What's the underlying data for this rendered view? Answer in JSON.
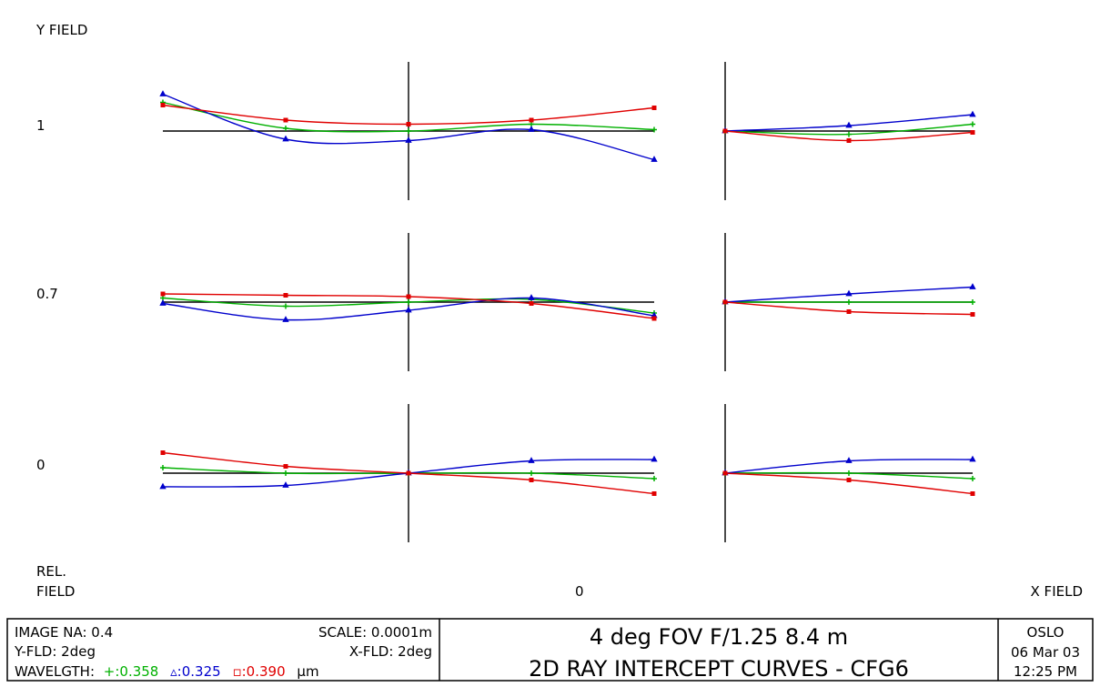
{
  "chart_data": {
    "type": "line",
    "y_field_label": "Y FIELD",
    "x_field_label": "X FIELD",
    "rel_field_label": [
      "REL.",
      "FIELD"
    ],
    "x_field_value": "0",
    "rows": [
      {
        "field_label": "1",
        "tangential": {
          "x": [
            -1,
            -0.5,
            0,
            0.5,
            1
          ],
          "series": [
            {
              "key": "green",
              "values": [
                1.05,
                0.1,
                0.0,
                0.25,
                0.05
              ]
            },
            {
              "key": "blue",
              "values": [
                1.35,
                -0.3,
                -0.35,
                0.05,
                -1.05
              ]
            },
            {
              "key": "red",
              "values": [
                0.95,
                0.4,
                0.25,
                0.4,
                0.85
              ]
            }
          ]
        },
        "sagittal": {
          "x": [
            0,
            0.5,
            1
          ],
          "series": [
            {
              "key": "green",
              "values": [
                0.0,
                -0.12,
                0.25
              ]
            },
            {
              "key": "blue",
              "values": [
                0.0,
                0.2,
                0.6
              ]
            },
            {
              "key": "red",
              "values": [
                0.0,
                -0.35,
                -0.05
              ]
            }
          ]
        }
      },
      {
        "field_label": "0.7",
        "tangential": {
          "x": [
            -1,
            -0.5,
            0,
            0.5,
            1
          ],
          "series": [
            {
              "key": "green",
              "values": [
                0.15,
                -0.15,
                0.0,
                0.1,
                -0.4
              ]
            },
            {
              "key": "blue",
              "values": [
                -0.05,
                -0.65,
                -0.3,
                0.15,
                -0.5
              ]
            },
            {
              "key": "red",
              "values": [
                0.3,
                0.25,
                0.2,
                -0.05,
                -0.6
              ]
            }
          ]
        },
        "sagittal": {
          "x": [
            0,
            0.5,
            1
          ],
          "series": [
            {
              "key": "green",
              "values": [
                0.0,
                0.0,
                0.0
              ]
            },
            {
              "key": "blue",
              "values": [
                0.0,
                0.3,
                0.55
              ]
            },
            {
              "key": "red",
              "values": [
                0.0,
                -0.35,
                -0.45
              ]
            }
          ]
        }
      },
      {
        "field_label": "0",
        "tangential": {
          "x": [
            -1,
            -0.5,
            0,
            0.5,
            1
          ],
          "series": [
            {
              "key": "green",
              "values": [
                0.2,
                0.0,
                0.0,
                0.0,
                -0.2
              ]
            },
            {
              "key": "blue",
              "values": [
                -0.5,
                -0.45,
                0.0,
                0.45,
                0.5
              ]
            },
            {
              "key": "red",
              "values": [
                0.75,
                0.25,
                0.0,
                -0.25,
                -0.75
              ]
            }
          ]
        },
        "sagittal": {
          "x": [
            0,
            0.5,
            1
          ],
          "series": [
            {
              "key": "green",
              "values": [
                0.0,
                0.0,
                -0.2
              ]
            },
            {
              "key": "blue",
              "values": [
                0.0,
                0.45,
                0.5
              ]
            },
            {
              "key": "red",
              "values": [
                0.0,
                -0.25,
                -0.75
              ]
            }
          ]
        }
      }
    ],
    "colors": {
      "green": "#00b000",
      "blue": "#0000cc",
      "red": "#e00000"
    }
  },
  "info": {
    "image_na": "IMAGE NA: 0.4",
    "scale": "SCALE: 0.0001m",
    "y_fld": "Y-FLD: 2deg",
    "x_fld": "X-FLD: 2deg",
    "wavelength_label": "WAVELGTH:",
    "wl_green": "+:0.358",
    "wl_blue": "▵:0.325",
    "wl_red": "▫:0.390",
    "wl_unit": "µm"
  },
  "title": {
    "line1": "4 deg FOV F/1.25 8.4 m",
    "line2": "2D RAY INTERCEPT CURVES - CFG6"
  },
  "stamp": {
    "program": "OSLO",
    "date": "06 Mar 03",
    "time": "12:25 PM"
  }
}
